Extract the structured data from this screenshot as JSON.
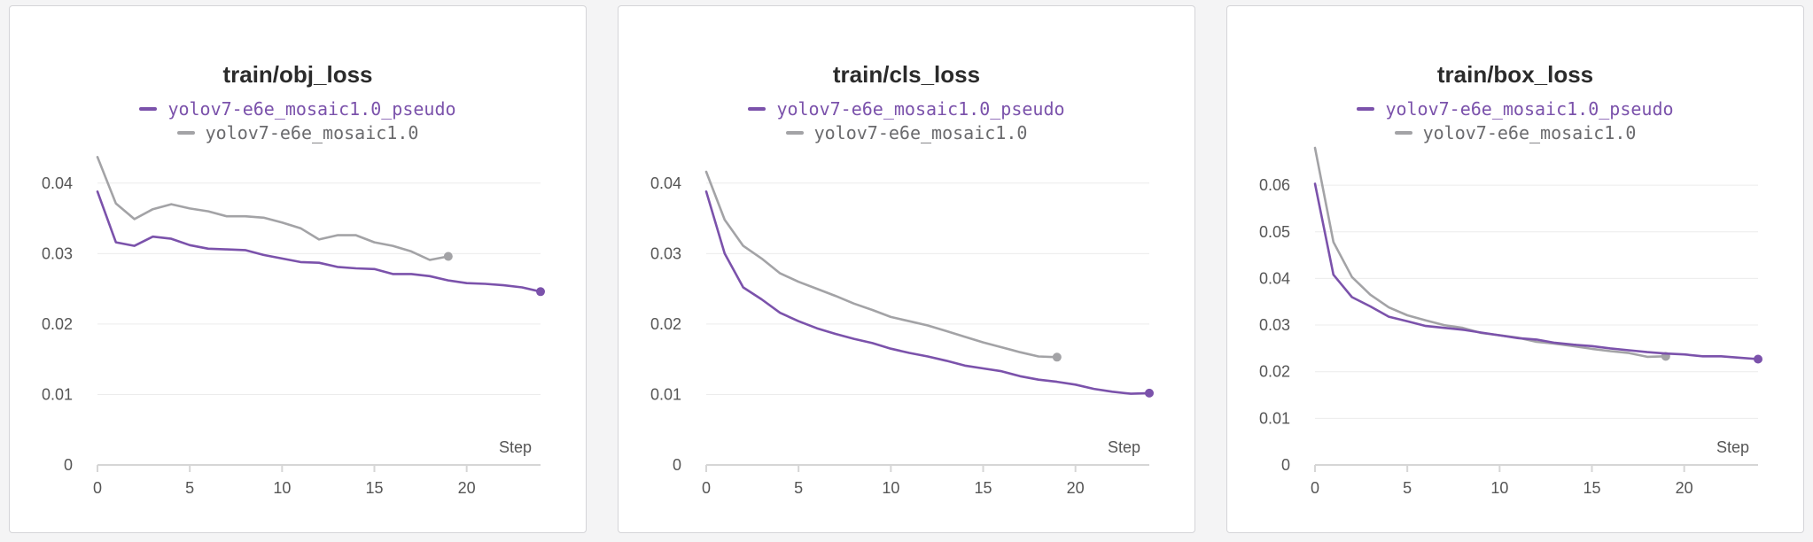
{
  "chart_data": [
    {
      "type": "line",
      "title": "train/obj_loss",
      "xlabel": "Step",
      "xlim": [
        0,
        24
      ],
      "ylim": [
        0,
        0.045
      ],
      "xticks": [
        "0",
        "5",
        "10",
        "15",
        "20"
      ],
      "yticks": [
        "0",
        "0.01",
        "0.02",
        "0.03",
        "0.04"
      ],
      "grid": true,
      "legend_position": "top",
      "series": [
        {
          "name": "yolov7-e6e_mosaic1.0_pseudo",
          "color": "#7b52ab",
          "x": [
            0,
            1,
            2,
            3,
            4,
            5,
            6,
            7,
            8,
            9,
            10,
            11,
            12,
            13,
            14,
            15,
            16,
            17,
            18,
            19,
            20,
            21,
            22,
            23,
            24
          ],
          "y": [
            0.0388,
            0.0316,
            0.0311,
            0.0324,
            0.0321,
            0.0312,
            0.0307,
            0.0306,
            0.0305,
            0.0298,
            0.0293,
            0.0288,
            0.0287,
            0.0281,
            0.0279,
            0.0278,
            0.0271,
            0.0271,
            0.0268,
            0.0262,
            0.0258,
            0.0257,
            0.0255,
            0.0252,
            0.0246
          ]
        },
        {
          "name": "yolov7-e6e_mosaic1.0",
          "color": "#a3a3a6",
          "x": [
            0,
            1,
            2,
            3,
            4,
            5,
            6,
            7,
            8,
            9,
            10,
            11,
            12,
            13,
            14,
            15,
            16,
            17,
            18,
            19
          ],
          "y": [
            0.0437,
            0.0371,
            0.0349,
            0.0363,
            0.037,
            0.0364,
            0.036,
            0.0353,
            0.0353,
            0.0351,
            0.0344,
            0.0336,
            0.032,
            0.0326,
            0.0326,
            0.0316,
            0.0311,
            0.0303,
            0.0291,
            0.0296
          ]
        }
      ]
    },
    {
      "type": "line",
      "title": "train/cls_loss",
      "xlabel": "Step",
      "xlim": [
        0,
        24
      ],
      "ylim": [
        0,
        0.045
      ],
      "xticks": [
        "0",
        "5",
        "10",
        "15",
        "20"
      ],
      "yticks": [
        "0",
        "0.01",
        "0.02",
        "0.03",
        "0.04"
      ],
      "grid": true,
      "legend_position": "top",
      "series": [
        {
          "name": "yolov7-e6e_mosaic1.0_pseudo",
          "color": "#7b52ab",
          "x": [
            0,
            1,
            2,
            3,
            4,
            5,
            6,
            7,
            8,
            9,
            10,
            11,
            12,
            13,
            14,
            15,
            16,
            17,
            18,
            19,
            20,
            21,
            22,
            23,
            24
          ],
          "y": [
            0.0388,
            0.03,
            0.0252,
            0.0235,
            0.0216,
            0.0204,
            0.0194,
            0.0186,
            0.0179,
            0.0173,
            0.0165,
            0.0159,
            0.0154,
            0.0148,
            0.0141,
            0.0137,
            0.0133,
            0.0126,
            0.0121,
            0.0118,
            0.0114,
            0.0108,
            0.0104,
            0.0101,
            0.0102
          ]
        },
        {
          "name": "yolov7-e6e_mosaic1.0",
          "color": "#a3a3a6",
          "x": [
            0,
            1,
            2,
            3,
            4,
            5,
            6,
            7,
            8,
            9,
            10,
            11,
            12,
            13,
            14,
            15,
            16,
            17,
            18,
            19
          ],
          "y": [
            0.0416,
            0.0348,
            0.0311,
            0.0293,
            0.0272,
            0.026,
            0.025,
            0.024,
            0.0229,
            0.022,
            0.021,
            0.0204,
            0.0198,
            0.019,
            0.0182,
            0.0174,
            0.0167,
            0.016,
            0.0154,
            0.0153
          ]
        }
      ]
    },
    {
      "type": "line",
      "title": "train/box_loss",
      "xlabel": "Step",
      "xlim": [
        0,
        24
      ],
      "ylim": [
        0,
        0.068
      ],
      "xticks": [
        "0",
        "5",
        "10",
        "15",
        "20"
      ],
      "yticks": [
        "0",
        "0.01",
        "0.02",
        "0.03",
        "0.04",
        "0.05",
        "0.06"
      ],
      "grid": true,
      "legend_position": "top",
      "series": [
        {
          "name": "yolov7-e6e_mosaic1.0_pseudo",
          "color": "#7b52ab",
          "x": [
            0,
            1,
            2,
            3,
            4,
            5,
            6,
            7,
            8,
            9,
            10,
            11,
            12,
            13,
            14,
            15,
            16,
            17,
            18,
            19,
            20,
            21,
            22,
            23,
            24
          ],
          "y": [
            0.0603,
            0.0408,
            0.036,
            0.034,
            0.0318,
            0.0308,
            0.0298,
            0.0294,
            0.029,
            0.0284,
            0.0278,
            0.0272,
            0.0269,
            0.0262,
            0.0258,
            0.0255,
            0.025,
            0.0246,
            0.0242,
            0.0239,
            0.0237,
            0.0233,
            0.0233,
            0.023,
            0.0227
          ]
        },
        {
          "name": "yolov7-e6e_mosaic1.0",
          "color": "#a3a3a6",
          "x": [
            0,
            1,
            2,
            3,
            4,
            5,
            6,
            7,
            8,
            9,
            10,
            11,
            12,
            13,
            14,
            15,
            16,
            17,
            18,
            19
          ],
          "y": [
            0.068,
            0.0478,
            0.0403,
            0.0365,
            0.0338,
            0.0321,
            0.031,
            0.03,
            0.0294,
            0.0283,
            0.0278,
            0.0273,
            0.0264,
            0.026,
            0.0255,
            0.0249,
            0.0244,
            0.024,
            0.0232,
            0.0233
          ]
        }
      ]
    }
  ]
}
